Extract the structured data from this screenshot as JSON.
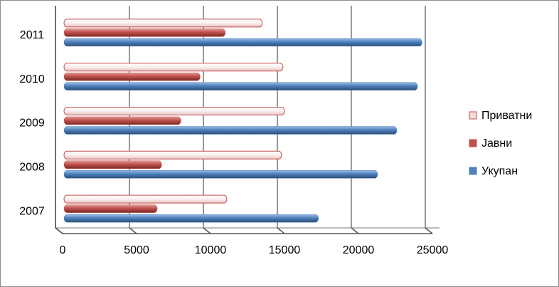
{
  "chart_data": {
    "type": "bar",
    "orientation": "horizontal",
    "categories": [
      "2007",
      "2008",
      "2009",
      "2010",
      "2011"
    ],
    "series": [
      {
        "name": "Укупан",
        "color": "#4f81bd",
        "values": [
          17300,
          21300,
          22600,
          24000,
          24300
        ]
      },
      {
        "name": "Јавни",
        "color": "#c0504d",
        "values": [
          6400,
          6700,
          8000,
          9300,
          11000
        ]
      },
      {
        "name": "Приватни",
        "color": "#f2dcdb",
        "values": [
          11100,
          14800,
          15000,
          14900,
          13500
        ]
      }
    ],
    "xlim": [
      0,
      25000
    ],
    "xticks": [
      0,
      5000,
      10000,
      15000,
      20000,
      25000
    ],
    "grid": true,
    "legend": "right"
  }
}
